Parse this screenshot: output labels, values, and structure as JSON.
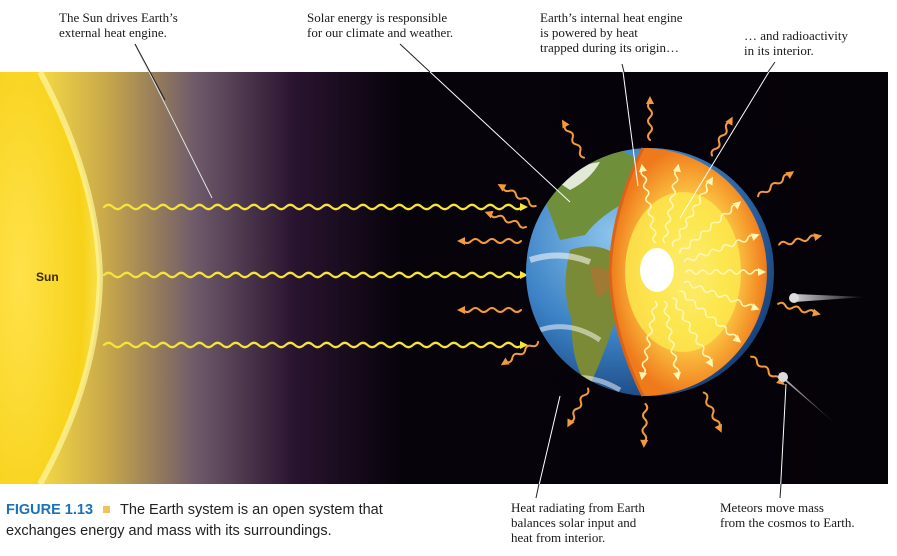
{
  "callouts": {
    "sun_drives": "The Sun drives Earth’s\nexternal heat engine.",
    "solar_energy": "Solar energy is responsible\nfor our climate and weather.",
    "internal_engine": "Earth’s internal heat engine\nis powered by heat\ntrapped during its origin…",
    "radioactivity": "… and radioactivity\nin its interior.",
    "heat_radiating": "Heat radiating from Earth\nbalances solar input and\nheat from interior.",
    "meteors": "Meteors move mass\nfrom the cosmos to Earth."
  },
  "sun_label": "Sun",
  "caption": {
    "label": "FIGURE 1.13",
    "text": "The Earth system is an open system that exchanges energy and mass with its surroundings."
  },
  "colors": {
    "space": "#050208",
    "sun": "#f7d21a",
    "sunlight_wave": "#f7e43a",
    "heat_arrow": "#f39a3c",
    "ocean": "#2f6fb4",
    "crust": "#f07f1f",
    "mantle": "#f8b43a",
    "outer_core": "#fce64e",
    "inner_core": "#ffffff",
    "caption_accent": "#1a72b8"
  }
}
